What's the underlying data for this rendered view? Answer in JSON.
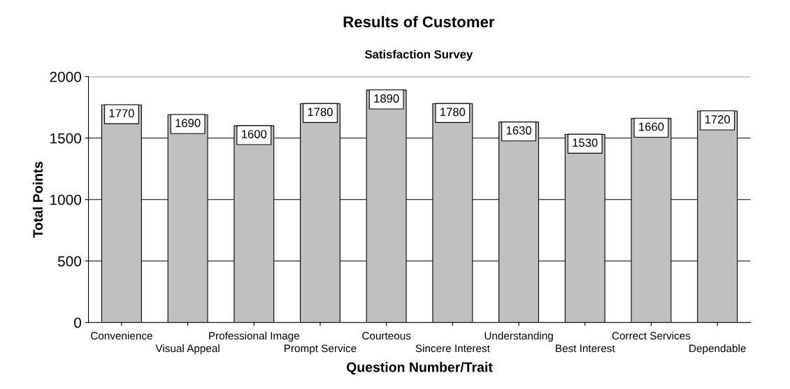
{
  "chart_data": {
    "type": "bar",
    "title": "Results of Customer",
    "subtitle": "Satisfaction Survey",
    "xlabel": "Question Number/Trait",
    "ylabel": "Total Points",
    "categories": [
      "Convenience",
      "Visual Appeal",
      "Professional Image",
      "Prompt Service",
      "Courteous",
      "Sincere Interest",
      "Understanding",
      "Best Interest",
      "Correct Services",
      "Dependable"
    ],
    "values": [
      1770,
      1690,
      1600,
      1780,
      1890,
      1780,
      1630,
      1530,
      1660,
      1720
    ],
    "color": "#c0c0c0",
    "ylim": [
      0,
      2000
    ],
    "yticks": [
      0,
      500,
      1000,
      1500,
      2000
    ],
    "grid": "y",
    "data_labels": true
  }
}
